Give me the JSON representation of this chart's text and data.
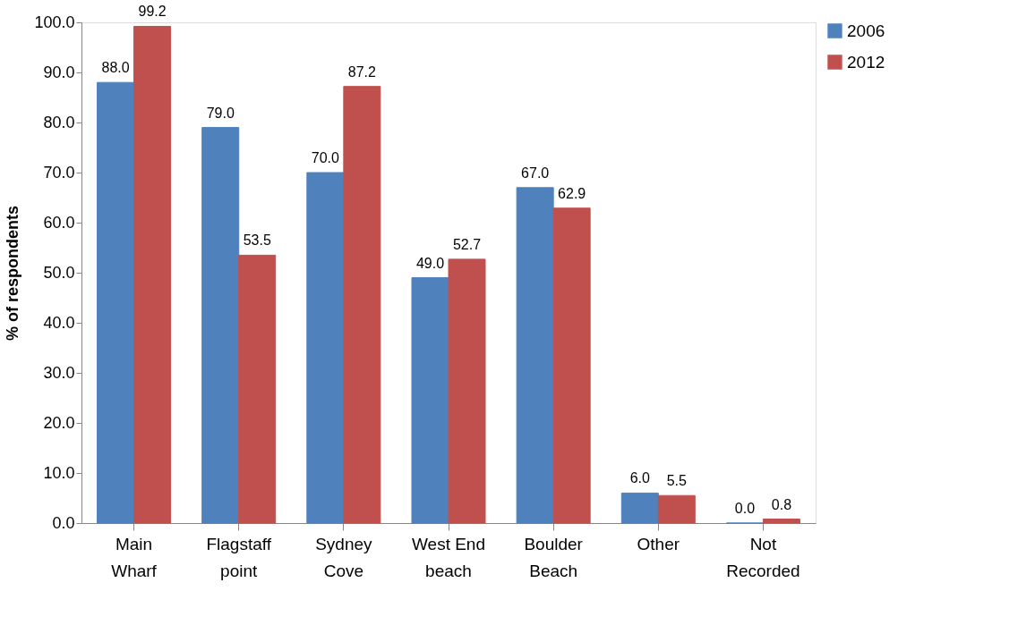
{
  "chart_data": {
    "type": "bar",
    "ylabel": "% of respondents",
    "categories": [
      "Main\nWharf",
      "Flagstaff\npoint",
      "Sydney\nCove",
      "West End\nbeach",
      "Boulder\nBeach",
      "Other",
      "Not\nRecorded"
    ],
    "series": [
      {
        "name": "2006",
        "color": "#4f81bd",
        "values": [
          88.0,
          79.0,
          70.0,
          49.0,
          67.0,
          6.0,
          0.0
        ],
        "value_labels": [
          "88.0",
          "79.0",
          "70.0",
          "49.0",
          "67.0",
          "6.0",
          "0.0"
        ]
      },
      {
        "name": "2012",
        "color": "#c0504d",
        "values": [
          99.2,
          53.5,
          87.2,
          52.7,
          62.9,
          5.5,
          0.8
        ],
        "value_labels": [
          "99.2",
          "53.5",
          "87.2",
          "52.7",
          "62.9",
          "5.5",
          "0.8"
        ]
      }
    ],
    "ylim": [
      0,
      100
    ],
    "yticks": [
      {
        "value": 0,
        "label": "0.0"
      },
      {
        "value": 10,
        "label": "10.0"
      },
      {
        "value": 20,
        "label": "20.0"
      },
      {
        "value": 30,
        "label": "30.0"
      },
      {
        "value": 40,
        "label": "40.0"
      },
      {
        "value": 50,
        "label": "50.0"
      },
      {
        "value": 60,
        "label": "60.0"
      },
      {
        "value": 70,
        "label": "70.0"
      },
      {
        "value": 80,
        "label": "80.0"
      },
      {
        "value": 90,
        "label": "90.0"
      },
      {
        "value": 100,
        "label": "100.0"
      }
    ],
    "grid": false,
    "legend": "right"
  }
}
